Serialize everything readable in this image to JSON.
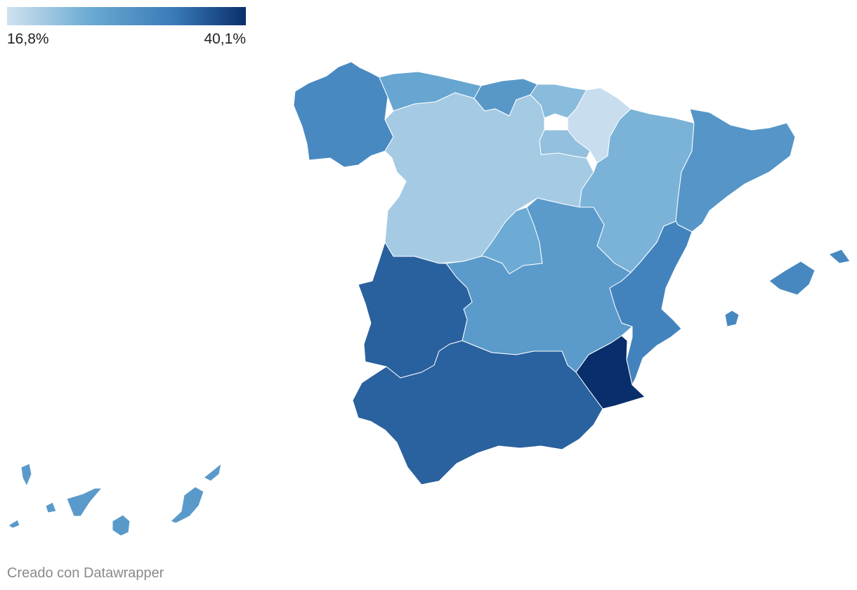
{
  "legend": {
    "min_label": "16,8%",
    "max_label": "40,1%",
    "min_value": 16.8,
    "max_value": 40.1,
    "colors": [
      "#d1e2f0",
      "#6aaad3",
      "#3a7ab8",
      "#082f6b"
    ]
  },
  "credit": "Creado con Datawrapper",
  "regions": [
    {
      "id": "galicia",
      "value": 30.5
    },
    {
      "id": "asturias",
      "value": 25.6
    },
    {
      "id": "cantabria",
      "value": 28.0
    },
    {
      "id": "pais-vasco",
      "value": 22.5
    },
    {
      "id": "navarra",
      "value": 17.5
    },
    {
      "id": "la-rioja",
      "value": 21.8
    },
    {
      "id": "castilla-y-leon",
      "value": 20.3
    },
    {
      "id": "aragon",
      "value": 23.6
    },
    {
      "id": "cataluna",
      "value": 28.5
    },
    {
      "id": "madrid",
      "value": 24.8
    },
    {
      "id": "castilla-la-mancha",
      "value": 27.5
    },
    {
      "id": "valencia",
      "value": 31.6
    },
    {
      "id": "extremadura",
      "value": 35.5
    },
    {
      "id": "andalucia",
      "value": 35.4
    },
    {
      "id": "murcia",
      "value": 40.1
    },
    {
      "id": "baleares",
      "value": 30.8
    },
    {
      "id": "canarias",
      "value": 27.6
    }
  ]
}
